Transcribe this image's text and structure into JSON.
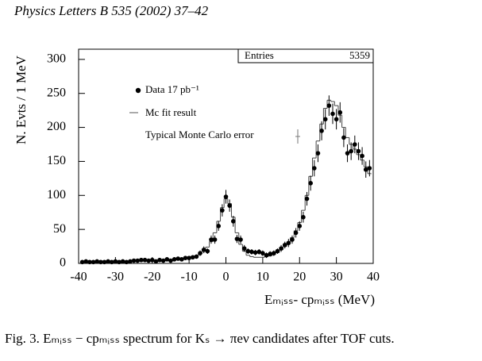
{
  "header": {
    "title": "Physics Letters B 535 (2002) 37–42"
  },
  "chart_data": {
    "type": "scatter",
    "xlabel": "Eₘᵢₛₛ- cpₘᵢₛₛ (MeV)",
    "ylabel": "N. Evts / 1 MeV",
    "xlim": [
      -40,
      40
    ],
    "ylim": [
      0,
      315
    ],
    "xticks": [
      -40,
      -30,
      -20,
      -10,
      0,
      10,
      20,
      30,
      40
    ],
    "yticks": [
      0,
      50,
      100,
      150,
      200,
      250,
      300
    ],
    "stats": {
      "label": "Entries",
      "value": 5359
    },
    "annotation": "Typical Monte Carlo error",
    "x": [
      -39,
      -38,
      -37,
      -36,
      -35,
      -34,
      -33,
      -32,
      -31,
      -30,
      -29,
      -28,
      -27,
      -26,
      -25,
      -24,
      -23,
      -22,
      -21,
      -20,
      -19,
      -18,
      -17,
      -16,
      -15,
      -14,
      -13,
      -12,
      -11,
      -10,
      -9,
      -8,
      -7,
      -6,
      -5,
      -4,
      -3,
      -2,
      -1,
      0,
      1,
      2,
      3,
      4,
      5,
      6,
      7,
      8,
      9,
      10,
      11,
      12,
      13,
      14,
      15,
      16,
      17,
      18,
      19,
      20,
      21,
      22,
      23,
      24,
      25,
      26,
      27,
      28,
      29,
      30,
      31,
      32,
      33,
      34,
      35,
      36,
      37,
      38,
      39
    ],
    "series": [
      {
        "name": "Data 17 pb⁻¹",
        "color": "#000000",
        "values": [
          2,
          3,
          2,
          2,
          3,
          2,
          2,
          3,
          2,
          3,
          2,
          3,
          2,
          3,
          4,
          4,
          5,
          5,
          4,
          5,
          3,
          5,
          4,
          6,
          4,
          6,
          7,
          6,
          8,
          8,
          9,
          10,
          15,
          20,
          18,
          35,
          35,
          55,
          78,
          98,
          85,
          62,
          36,
          35,
          22,
          18,
          17,
          16,
          17,
          15,
          12,
          14,
          15,
          18,
          22,
          27,
          30,
          35,
          45,
          55,
          68,
          95,
          118,
          140,
          162,
          195,
          212,
          232,
          220,
          212,
          222,
          185,
          162,
          165,
          175,
          165,
          158,
          138,
          140
        ],
        "errors": [
          2,
          2,
          2,
          2,
          2,
          2,
          2,
          2,
          2,
          2,
          2,
          2,
          2,
          2,
          2,
          2,
          2,
          2,
          2,
          2,
          2,
          2,
          2,
          3,
          2,
          3,
          3,
          3,
          3,
          3,
          3,
          3,
          4,
          5,
          4,
          6,
          6,
          7,
          9,
          10,
          9,
          8,
          6,
          6,
          5,
          4,
          4,
          4,
          4,
          4,
          4,
          4,
          4,
          4,
          5,
          5,
          6,
          6,
          7,
          7,
          8,
          10,
          11,
          12,
          13,
          14,
          15,
          15,
          15,
          15,
          15,
          14,
          13,
          13,
          13,
          13,
          13,
          12,
          12
        ]
      },
      {
        "name": "Mc fit result",
        "color": "#000000",
        "values": [
          2,
          2,
          2,
          2,
          2,
          2,
          2,
          2,
          3,
          3,
          3,
          3,
          3,
          3,
          3,
          4,
          4,
          4,
          4,
          4,
          4,
          5,
          5,
          5,
          5,
          6,
          6,
          7,
          7,
          8,
          9,
          11,
          14,
          18,
          24,
          32,
          45,
          62,
          82,
          95,
          88,
          68,
          45,
          28,
          18,
          12,
          10,
          9,
          9,
          9,
          10,
          11,
          13,
          16,
          20,
          25,
          31,
          38,
          48,
          60,
          78,
          100,
          128,
          155,
          180,
          205,
          228,
          240,
          238,
          232,
          218,
          200,
          185,
          175,
          168,
          160,
          152,
          142,
          132
        ]
      }
    ]
  },
  "caption": "Fig. 3. Eₘᵢₛₛ − cpₘᵢₛₛ spectrum for Kₛ → πeν candidates after TOF cuts."
}
